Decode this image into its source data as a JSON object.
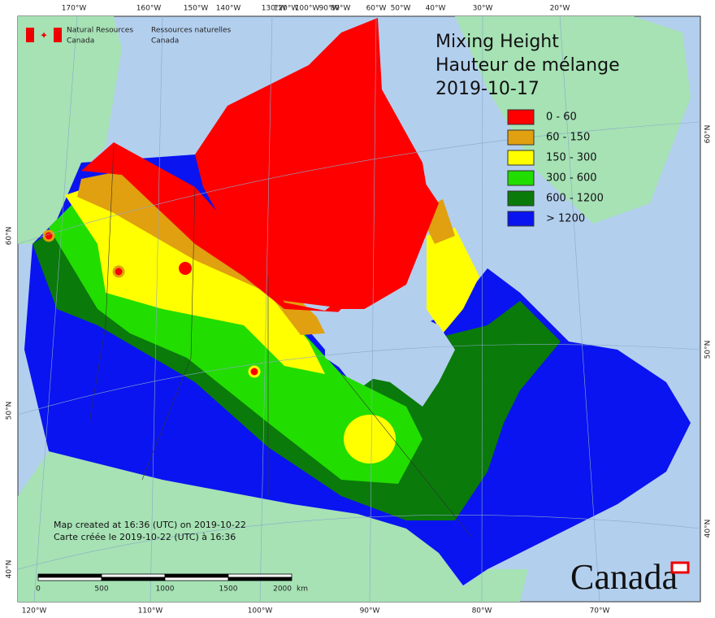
{
  "header": {
    "org_en": [
      "Natural Resources",
      "Canada"
    ],
    "org_fr": [
      "Ressources naturelles",
      "Canada"
    ]
  },
  "title": [
    "Mixing Height",
    "Hauteur de mélange",
    "2019-10-17"
  ],
  "legend": [
    {
      "label": "0 - 60",
      "color": "#ff0000"
    },
    {
      "label": "60 - 150",
      "color": "#e0a010"
    },
    {
      "label": "150 - 300",
      "color": "#ffff00"
    },
    {
      "label": "300 - 600",
      "color": "#22dd00"
    },
    {
      "label": "600 - 1200",
      "color": "#0a7a0a"
    },
    {
      "label": "> 1200",
      "color": "#0a14f0"
    }
  ],
  "top_longitudes": [
    "170°W",
    "160°W",
    "150°W",
    "140°W",
    "130°W",
    "120°W",
    "100°W",
    "90°W",
    "80°W",
    "60°W",
    "50°W",
    "40°W",
    "30°W",
    "20°W"
  ],
  "bottom_longitudes": [
    "120°W",
    "110°W",
    "100°W",
    "90°W",
    "80°W",
    "70°W"
  ],
  "left_latitudes": [
    "60°N",
    "50°N",
    "40°N"
  ],
  "right_latitudes": [
    "60°N",
    "50°N",
    "40°N"
  ],
  "footer": [
    "Map created at 16:36 (UTC) on 2019-10-22",
    "Carte créée le 2019-10-22 (UTC) à 16:36"
  ],
  "scale": {
    "ticks": [
      "0",
      "500",
      "1000",
      "1500",
      "2000"
    ],
    "unit": "km"
  },
  "logo": "Canada"
}
